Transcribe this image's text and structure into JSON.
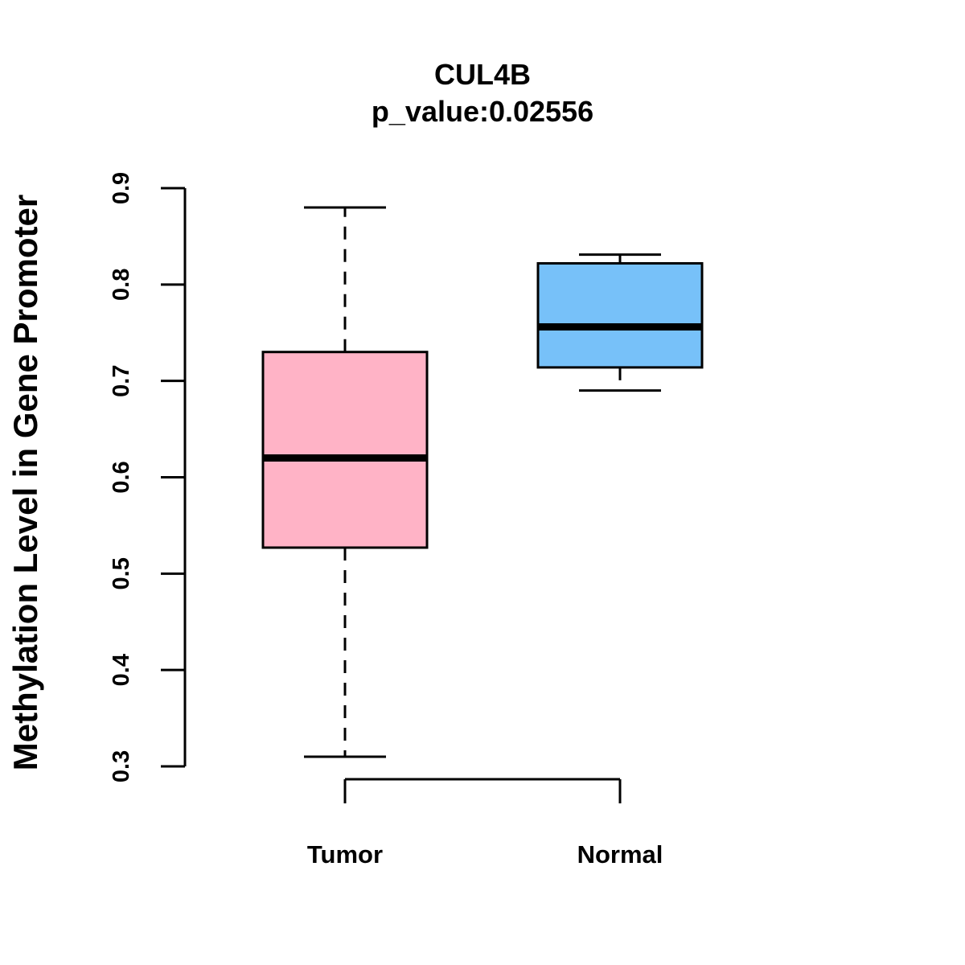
{
  "chart_data": {
    "type": "boxplot",
    "title": "CUL4B",
    "subtitle": "p_value:0.02556",
    "xlabel": "",
    "ylabel": "Methylation Level in Gene Promoter",
    "ylim": [
      0.3,
      0.9
    ],
    "yticks": [
      0.3,
      0.4,
      0.5,
      0.6,
      0.7,
      0.8,
      0.9
    ],
    "ytick_labels": [
      "0.3",
      "0.4",
      "0.5",
      "0.6",
      "0.7",
      "0.8",
      "0.9"
    ],
    "grid": false,
    "categories": [
      "Tumor",
      "Normal"
    ],
    "boxes": [
      {
        "category": "Tumor",
        "whisker_low": 0.31,
        "q1": 0.527,
        "median": 0.62,
        "q3": 0.73,
        "whisker_high": 0.88,
        "color": "#FFB3C6"
      },
      {
        "category": "Normal",
        "whisker_low": 0.69,
        "q1": 0.714,
        "median": 0.756,
        "q3": 0.822,
        "whisker_high": 0.831,
        "color": "#77C1F9"
      }
    ]
  }
}
